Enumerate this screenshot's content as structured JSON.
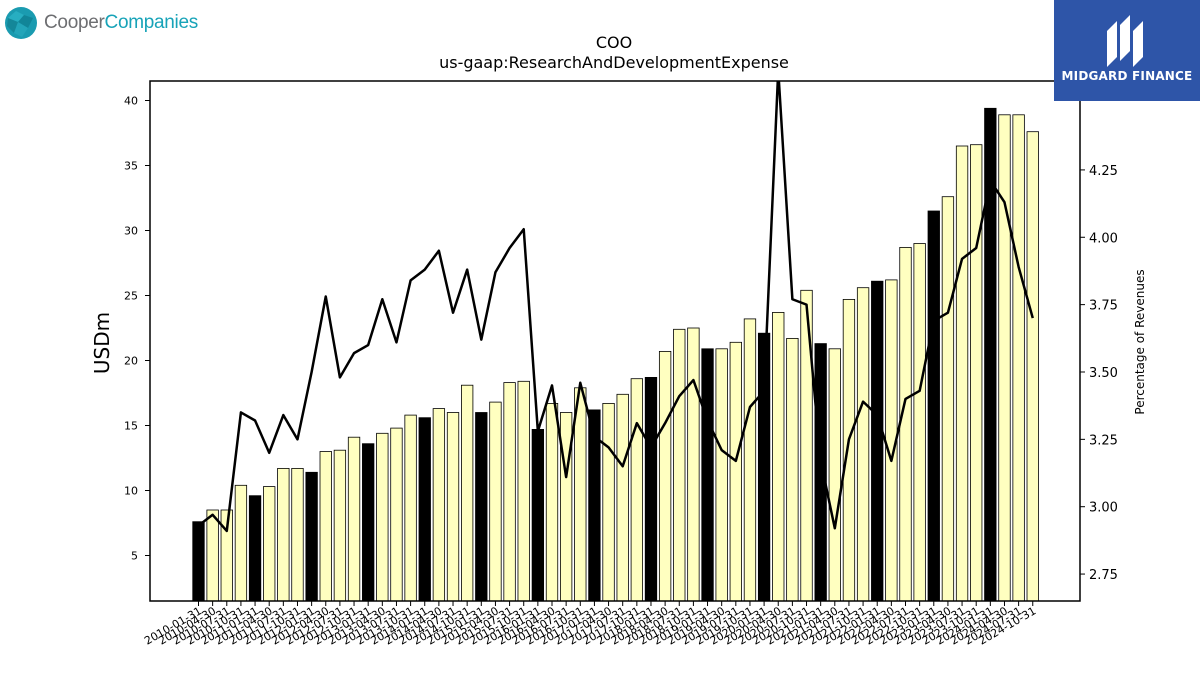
{
  "branding": {
    "left_word1": "Cooper",
    "left_word2": "Companies",
    "right_text": "MIDGARD FINANCE"
  },
  "chart_data": {
    "type": "bar",
    "title": "COO",
    "subtitle": "us-gaap:ResearchAndDevelopmentExpense",
    "ylabel": "USDm",
    "y2label": "Percentage of Revenues",
    "ylim": [
      1.5,
      41.5
    ],
    "y2lim": [
      2.65,
      4.58
    ],
    "yticks": [
      5,
      10,
      15,
      20,
      25,
      30,
      35,
      40
    ],
    "y2ticks": [
      "2.75",
      "3.00",
      "3.25",
      "3.50",
      "3.75",
      "4.00",
      "4.25"
    ],
    "categories": [
      "2010-01-31",
      "2010-04-30",
      "2010-07-31",
      "2010-10-31",
      "2011-01-31",
      "2011-04-30",
      "2011-07-31",
      "2011-10-31",
      "2012-01-31",
      "2012-04-30",
      "2012-07-31",
      "2012-10-31",
      "2013-01-31",
      "2013-04-30",
      "2013-07-31",
      "2013-10-31",
      "2014-01-31",
      "2014-04-30",
      "2014-07-31",
      "2014-10-31",
      "2015-01-31",
      "2015-04-30",
      "2015-07-31",
      "2015-10-31",
      "2016-01-31",
      "2016-04-30",
      "2016-07-31",
      "2016-10-31",
      "2017-01-31",
      "2017-04-30",
      "2017-07-31",
      "2017-10-31",
      "2018-01-31",
      "2018-04-30",
      "2018-07-31",
      "2018-10-31",
      "2019-01-31",
      "2019-04-30",
      "2019-07-31",
      "2019-10-31",
      "2020-01-31",
      "2020-04-30",
      "2020-07-31",
      "2020-10-31",
      "2021-01-31",
      "2021-04-30",
      "2021-07-31",
      "2021-10-31",
      "2022-01-31",
      "2022-04-30",
      "2022-07-31",
      "2022-10-31",
      "2023-01-31",
      "2023-04-30",
      "2023-07-31",
      "2023-10-31",
      "2024-01-31",
      "2024-04-30",
      "2024-07-31",
      "2024-10-31"
    ],
    "series": [
      {
        "type": "bar",
        "values": [
          7.6,
          8.5,
          8.5,
          10.4,
          9.6,
          10.3,
          11.7,
          11.7,
          11.4,
          13.0,
          13.1,
          14.1,
          13.6,
          14.4,
          14.8,
          15.8,
          15.6,
          16.3,
          16.0,
          18.1,
          16.0,
          16.8,
          18.3,
          18.4,
          14.7,
          16.7,
          16.0,
          17.9,
          16.2,
          16.7,
          17.4,
          18.6,
          18.7,
          20.7,
          22.4,
          22.5,
          20.9,
          20.9,
          21.4,
          23.2,
          22.1,
          23.7,
          21.7,
          25.4,
          21.3,
          20.9,
          24.7,
          25.6,
          26.1,
          26.2,
          28.7,
          29.0,
          31.5,
          32.6,
          36.5,
          36.6,
          39.4,
          38.9,
          38.9,
          37.6
        ],
        "highlight": [
          true,
          false,
          false,
          false,
          true,
          false,
          false,
          false,
          true,
          false,
          false,
          false,
          true,
          false,
          false,
          false,
          true,
          false,
          false,
          false,
          true,
          false,
          false,
          false,
          true,
          false,
          false,
          false,
          true,
          false,
          false,
          false,
          true,
          false,
          false,
          false,
          true,
          false,
          false,
          false,
          true,
          false,
          false,
          false,
          true,
          false,
          false,
          false,
          true,
          false,
          false,
          false,
          true,
          false,
          false,
          false,
          true,
          false,
          false,
          false
        ]
      },
      {
        "type": "line",
        "axis": "right",
        "values": [
          2.93,
          2.97,
          2.91,
          3.35,
          3.32,
          3.2,
          3.34,
          3.25,
          3.5,
          3.78,
          3.48,
          3.57,
          3.6,
          3.77,
          3.61,
          3.84,
          3.88,
          3.95,
          3.72,
          3.88,
          3.62,
          3.87,
          3.96,
          4.03,
          3.28,
          3.45,
          3.11,
          3.46,
          3.26,
          3.22,
          3.15,
          3.31,
          3.22,
          3.31,
          3.41,
          3.47,
          3.32,
          3.21,
          3.17,
          3.37,
          3.43,
          4.62,
          3.77,
          3.75,
          3.17,
          2.92,
          3.25,
          3.39,
          3.34,
          3.17,
          3.4,
          3.43,
          3.69,
          3.72,
          3.92,
          3.96,
          4.21,
          4.13,
          3.89,
          3.7
        ]
      }
    ],
    "colors": {
      "bar_normal": "#ffffc0",
      "bar_highlight": "#000000",
      "bar_edge": "#000000",
      "line": "#000000"
    },
    "grid": false,
    "legend": "none"
  }
}
